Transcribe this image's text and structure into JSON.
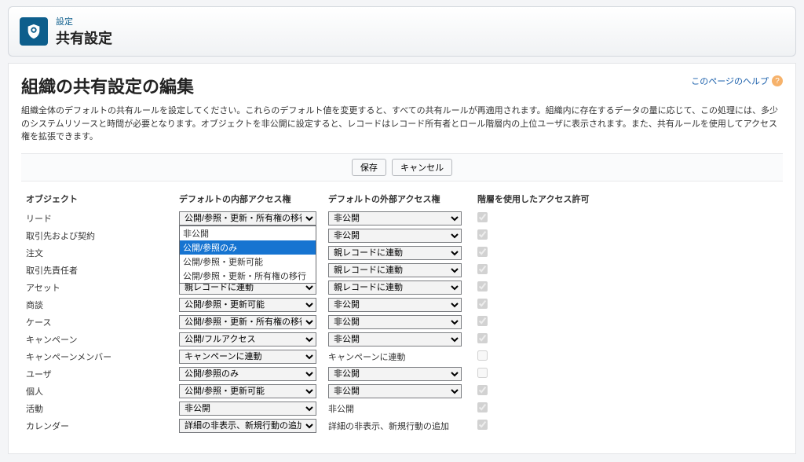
{
  "header": {
    "small": "設定",
    "big": "共有設定"
  },
  "page": {
    "title": "組織の共有設定の編集",
    "help_label": "このページのヘルプ",
    "description": "組織全体のデフォルトの共有ルールを設定してください。これらのデフォルト値を変更すると、すべての共有ルールが再適用されます。組織内に存在するデータの量に応じて、この処理には、多少のシステムリソースと時間が必要となります。オブジェクトを非公開に設定すると、レコードはレコード所有者とロール階層内の上位ユーザに表示されます。また、共有ルールを使用してアクセス権を拡張できます。"
  },
  "toolbar": {
    "save": "保存",
    "cancel": "キャンセル"
  },
  "columns": {
    "object": "オブジェクト",
    "internal": "デフォルトの内部アクセス権",
    "external": "デフォルトの外部アクセス権",
    "hierarchy": "階層を使用したアクセス許可"
  },
  "dropdown_options": {
    "opt0": "非公開",
    "opt1": "公開/参照のみ",
    "opt2": "公開/参照・更新可能",
    "opt3": "公開/参照・更新・所有権の移行"
  },
  "rows": {
    "lead": {
      "obj": "リード",
      "int": "公開/参照・更新・所有権の移行",
      "ext": "非公開",
      "int_type": "select",
      "ext_type": "select",
      "chk": true
    },
    "account": {
      "obj": "取引先および契約",
      "int": "",
      "ext": "非公開",
      "int_type": "hidden",
      "ext_type": "select",
      "chk": true
    },
    "order": {
      "obj": "注文",
      "int": "",
      "ext": "親レコードに連動",
      "int_type": "hidden",
      "ext_type": "select",
      "chk": true
    },
    "contact": {
      "obj": "取引先責任者",
      "int": "",
      "ext": "親レコードに連動",
      "int_type": "hidden",
      "ext_type": "select",
      "chk": true
    },
    "asset": {
      "obj": "アセット",
      "int": "親レコードに連動",
      "ext": "親レコードに連動",
      "int_type": "select",
      "ext_type": "select",
      "chk": true
    },
    "opportunity": {
      "obj": "商談",
      "int": "公開/参照・更新可能",
      "ext": "非公開",
      "int_type": "select",
      "ext_type": "select",
      "chk": true
    },
    "case": {
      "obj": "ケース",
      "int": "公開/参照・更新・所有権の移行",
      "ext": "非公開",
      "int_type": "select",
      "ext_type": "select",
      "chk": true
    },
    "campaign": {
      "obj": "キャンペーン",
      "int": "公開/フルアクセス",
      "ext": "非公開",
      "int_type": "select",
      "ext_type": "select",
      "chk": true
    },
    "campmember": {
      "obj": "キャンペーンメンバー",
      "int": "キャンペーンに連動",
      "ext": "キャンペーンに連動",
      "int_type": "select",
      "ext_type": "text",
      "chk": false
    },
    "user": {
      "obj": "ユーザ",
      "int": "公開/参照のみ",
      "ext": "非公開",
      "int_type": "select",
      "ext_type": "select",
      "chk": false
    },
    "individual": {
      "obj": "個人",
      "int": "公開/参照・更新可能",
      "ext": "非公開",
      "int_type": "select",
      "ext_type": "select",
      "chk": true
    },
    "activity": {
      "obj": "活動",
      "int": "非公開",
      "ext": "非公開",
      "int_type": "select",
      "ext_type": "text",
      "chk": true
    },
    "calendar": {
      "obj": "カレンダー",
      "int": "詳細の非表示、新規行動の追加",
      "ext": "詳細の非表示、新規行動の追加",
      "int_type": "select",
      "ext_type": "text",
      "chk": true
    }
  }
}
